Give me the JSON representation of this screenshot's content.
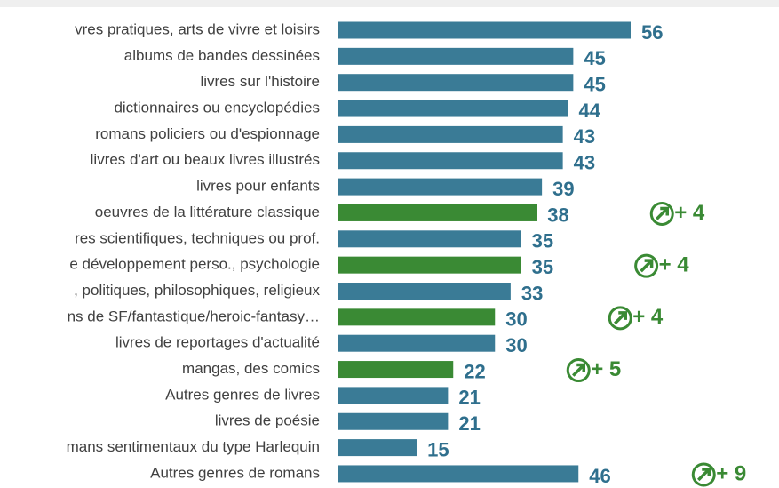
{
  "chart_data": {
    "type": "bar",
    "orientation": "horizontal",
    "categories": [
      "vres pratiques, arts de vivre et loisirs",
      "albums de bandes dessinées",
      "livres sur l'histoire",
      "dictionnaires ou encyclopédies",
      "romans policiers ou d'espionnage",
      "livres d'art ou beaux livres illustrés",
      "livres pour enfants",
      "oeuvres de la littérature classique",
      "res scientifiques, techniques ou prof.",
      "e développement perso., psychologie",
      ", politiques, philosophiques, religieux",
      "ns de SF/fantastique/heroic-fantasy…",
      "livres de reportages d'actualité",
      "mangas, des comics",
      "Autres genres de livres",
      "livres de poésie",
      "mans sentimentaux du type Harlequin",
      "Autres genres de romans"
    ],
    "values": [
      56,
      45,
      45,
      44,
      43,
      43,
      39,
      38,
      35,
      35,
      33,
      30,
      30,
      22,
      21,
      21,
      15,
      46
    ],
    "colors": [
      "#3a7b96",
      "#3a7b96",
      "#3a7b96",
      "#3a7b96",
      "#3a7b96",
      "#3a7b96",
      "#3a7b96",
      "#3a8a34",
      "#3a7b96",
      "#3a8a34",
      "#3a7b96",
      "#3a8a34",
      "#3a7b96",
      "#3a8a34",
      "#3a7b96",
      "#3a7b96",
      "#3a7b96",
      "#3a7b96"
    ],
    "value_label_color": "#2f6f8d",
    "changes": [
      null,
      null,
      null,
      null,
      null,
      null,
      null,
      "+ 4",
      null,
      "+ 4",
      null,
      "+ 4",
      null,
      "+ 5",
      null,
      null,
      null,
      "+ 9"
    ],
    "change_color": "#3a8a34",
    "xlim": [
      0,
      56
    ]
  }
}
